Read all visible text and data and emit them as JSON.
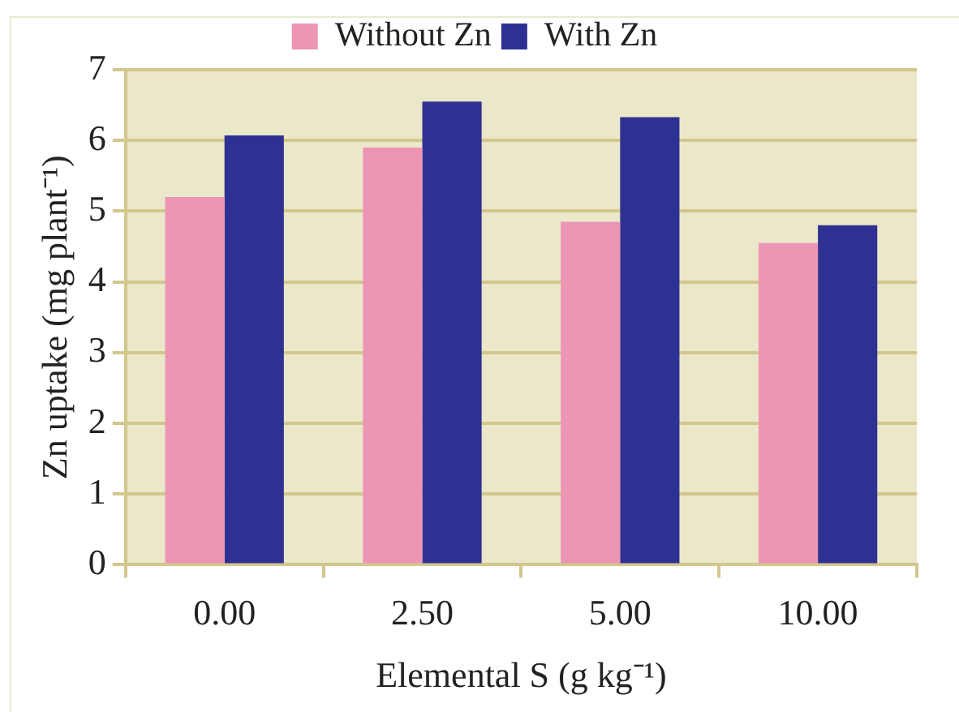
{
  "chart_data": {
    "type": "bar",
    "xlabel": "Elemental S (g kg⁻¹)",
    "ylabel": "Zn uptake (mg plant⁻¹)",
    "categories": [
      "0.00",
      "2.50",
      "5.00",
      "10.00"
    ],
    "series": [
      {
        "name": "Without Zn",
        "color": "#ec95b5",
        "values": [
          5.2,
          5.9,
          4.85,
          4.55
        ]
      },
      {
        "name": "With Zn",
        "color": "#2e3192",
        "values": [
          6.07,
          6.55,
          6.33,
          4.8
        ]
      }
    ],
    "ylim": [
      0,
      7
    ],
    "yticks": [
      0,
      1,
      2,
      3,
      4,
      5,
      6,
      7
    ],
    "grid": "y",
    "legend": "top"
  }
}
